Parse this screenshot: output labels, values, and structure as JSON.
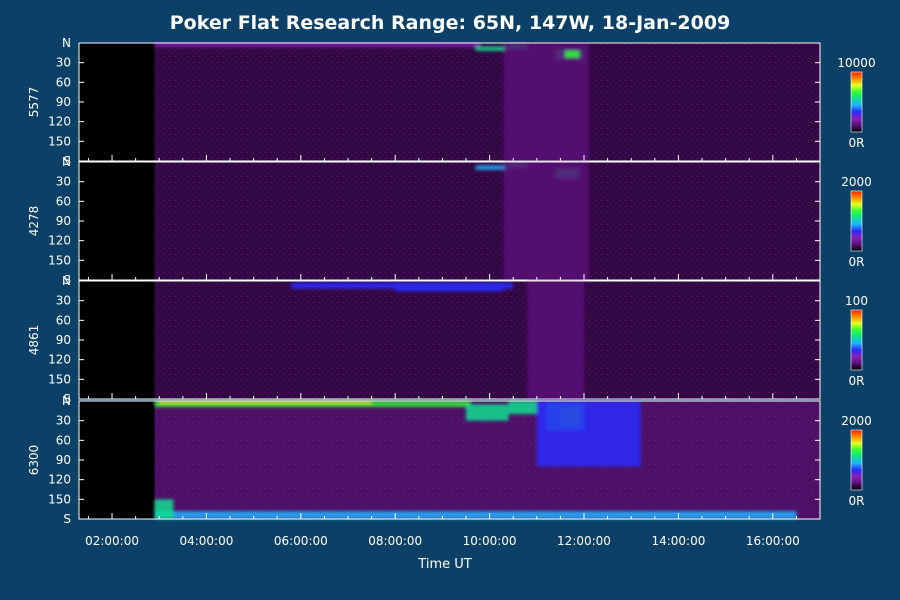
{
  "chart_data": {
    "type": "heatmap",
    "title": "Poker Flat Research Range: 65N, 147W, 18-Jan-2009",
    "xlabel": "Time UT",
    "x_ticks": [
      "02:00:00",
      "04:00:00",
      "06:00:00",
      "08:00:00",
      "10:00:00",
      "12:00:00",
      "14:00:00",
      "16:00:00"
    ],
    "x_tick_hours": [
      2,
      4,
      6,
      8,
      10,
      12,
      14,
      16
    ],
    "xlim_hours": [
      1.3,
      17.0
    ],
    "data_start_hour": 2.9,
    "y_ticks": [
      "N",
      "30",
      "60",
      "90",
      "120",
      "150",
      "S"
    ],
    "y_tick_values": [
      0,
      30,
      60,
      90,
      120,
      150,
      180
    ],
    "ylim": [
      0,
      180
    ],
    "colormap": [
      "#000000",
      "#5a0e78",
      "#8a1fb8",
      "#2a2aff",
      "#1fb4ff",
      "#10e090",
      "#30ff30",
      "#e8ff20",
      "#ff8a00",
      "#ff2000"
    ],
    "panels": [
      {
        "ylabel": "5577",
        "scale_max": "10000",
        "scale_min": "0R",
        "max_value": 10000,
        "background_intensity": 0.07,
        "features": [
          {
            "t0": 2.9,
            "t1": 9.8,
            "lat0": 0,
            "lat1": 6,
            "level": 0.18
          },
          {
            "t0": 9.7,
            "t1": 10.4,
            "lat0": 5,
            "lat1": 12,
            "level": 0.5
          },
          {
            "t0": 10.4,
            "t1": 10.8,
            "lat0": 0,
            "lat1": 10,
            "level": 0.55
          },
          {
            "t0": 11.4,
            "t1": 12.0,
            "lat0": 10,
            "lat1": 25,
            "level": 0.55
          },
          {
            "t0": 10.3,
            "t1": 12.1,
            "lat0": 0,
            "lat1": 180,
            "level": 0.1
          },
          {
            "t0": 11.6,
            "t1": 11.9,
            "lat0": 12,
            "lat1": 22,
            "level": 0.62
          }
        ]
      },
      {
        "ylabel": "4278",
        "scale_max": "2000",
        "scale_min": "0R",
        "max_value": 2000,
        "background_intensity": 0.06,
        "features": [
          {
            "t0": 9.7,
            "t1": 10.4,
            "lat0": 5,
            "lat1": 12,
            "level": 0.45
          },
          {
            "t0": 10.4,
            "t1": 10.8,
            "lat0": 0,
            "lat1": 8,
            "level": 0.5
          },
          {
            "t0": 11.4,
            "t1": 11.9,
            "lat0": 10,
            "lat1": 25,
            "level": 0.5
          },
          {
            "t0": 10.3,
            "t1": 12.1,
            "lat0": 0,
            "lat1": 180,
            "level": 0.08
          }
        ]
      },
      {
        "ylabel": "4861",
        "scale_max": "100",
        "scale_min": "0R",
        "max_value": 100,
        "background_intensity": 0.12,
        "features": [
          {
            "t0": 5.8,
            "t1": 10.5,
            "lat0": 2,
            "lat1": 12,
            "level": 0.3
          },
          {
            "t0": 8.0,
            "t1": 10.3,
            "lat0": 8,
            "lat1": 16,
            "level": 0.38
          },
          {
            "t0": 10.8,
            "t1": 12.0,
            "lat0": 0,
            "lat1": 180,
            "level": 0.16
          }
        ]
      },
      {
        "ylabel": "6300",
        "scale_max": "2000",
        "scale_min": "0R",
        "max_value": 2000,
        "background_intensity": 0.25,
        "features": [
          {
            "t0": 2.9,
            "t1": 9.6,
            "lat0": 0,
            "lat1": 9,
            "level": 0.62
          },
          {
            "t0": 3.0,
            "t1": 7.5,
            "lat0": 0,
            "lat1": 4,
            "level": 0.78
          },
          {
            "t0": 9.5,
            "t1": 10.4,
            "lat0": 5,
            "lat1": 30,
            "level": 0.52
          },
          {
            "t0": 10.4,
            "t1": 11.0,
            "lat0": 0,
            "lat1": 20,
            "level": 0.55
          },
          {
            "t0": 11.2,
            "t1": 12.0,
            "lat0": 2,
            "lat1": 45,
            "level": 0.6
          },
          {
            "t0": 11.5,
            "t1": 11.9,
            "lat0": 10,
            "lat1": 38,
            "level": 0.7
          },
          {
            "t0": 11.0,
            "t1": 13.2,
            "lat0": 0,
            "lat1": 100,
            "level": 0.35
          },
          {
            "t0": 2.9,
            "t1": 16.5,
            "lat0": 168,
            "lat1": 180,
            "level": 0.4
          },
          {
            "t0": 2.9,
            "t1": 3.3,
            "lat0": 150,
            "lat1": 180,
            "level": 0.55
          }
        ]
      }
    ]
  }
}
